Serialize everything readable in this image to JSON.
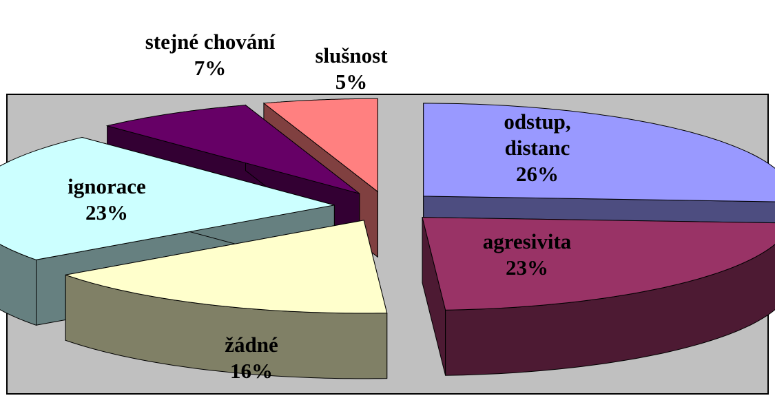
{
  "chart_data": {
    "type": "pie",
    "categories": [
      "odstup, distanc",
      "agresivita",
      "žádné",
      "ignorace",
      "stejné chování",
      "slušnost"
    ],
    "values": [
      26,
      23,
      16,
      23,
      7,
      5
    ],
    "value_labels": [
      "26%",
      "23%",
      "16%",
      "23%",
      "7%",
      "5%"
    ],
    "colors": [
      "#9999ff",
      "#993366",
      "#ffffcc",
      "#ccffff",
      "#660066",
      "#ff8080"
    ]
  }
}
